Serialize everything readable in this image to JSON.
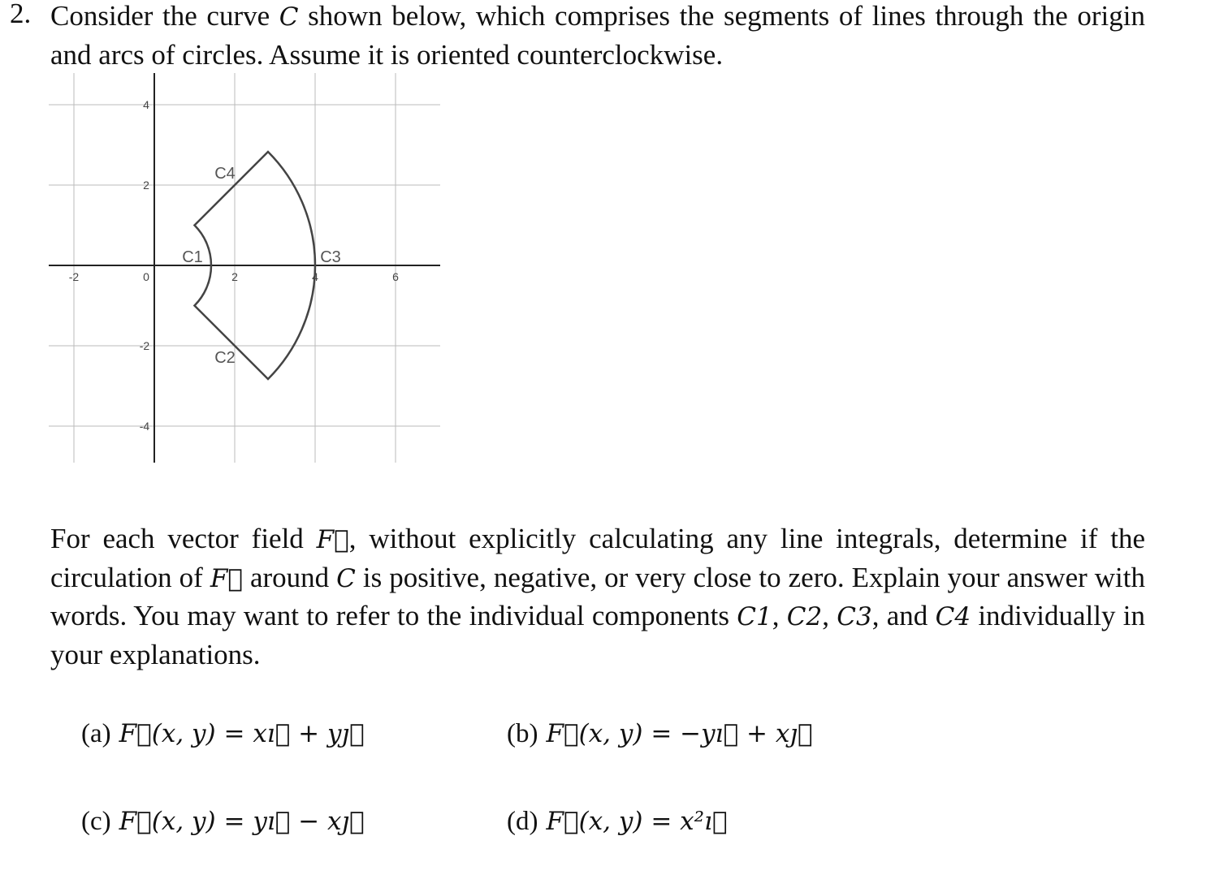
{
  "problem": {
    "number": "2.",
    "intro": [
      "Consider the curve ",
      "C",
      " shown below, which comprises the segments of lines through the origin and arcs of circles. Assume it is oriented counterclockwise."
    ]
  },
  "figure": {
    "x_ticks": [
      "-2",
      "0",
      "2",
      "4",
      "6"
    ],
    "y_ticks": [
      "4",
      "2",
      "-2",
      "-4"
    ],
    "labels": [
      "C1",
      "C2",
      "C3",
      "C4"
    ]
  },
  "question": [
    "For each vector field ",
    "F⃗",
    ", without explicitly calculating any line integrals, determine if the circulation of ",
    "F⃗",
    " around ",
    "C",
    " is positive, negative, or very close to zero. Explain your answer with words. You may want to refer to the individual components ",
    "C1",
    ", ",
    "C2",
    ", ",
    "C3",
    ", and ",
    "C4",
    " individually in your explanations."
  ],
  "fields": [
    {
      "label": "(a)",
      "formula": "F⃗(x, y) = xı⃗ + yȷ⃗"
    },
    {
      "label": "(b)",
      "formula": "F⃗(x, y) = −yı⃗ + xȷ⃗"
    },
    {
      "label": "(c)",
      "formula": "F⃗(x, y) = yı⃗ − xȷ⃗"
    },
    {
      "label": "(d)",
      "formula": "F⃗(x, y) = x²ı⃗"
    }
  ]
}
